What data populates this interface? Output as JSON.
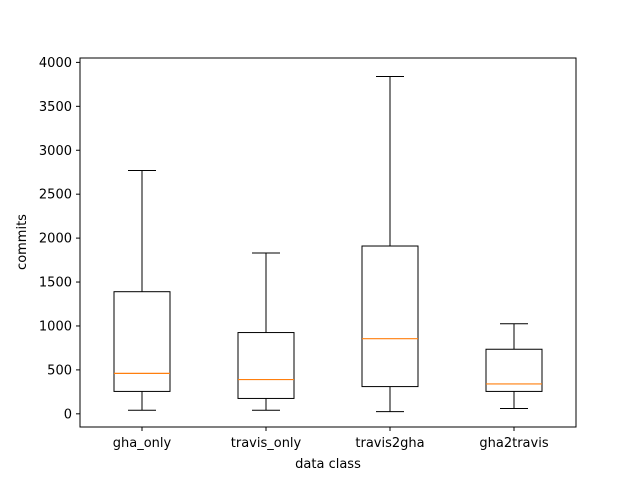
{
  "chart_data": {
    "type": "boxplot",
    "title": "",
    "xlabel": "data class",
    "ylabel": "commits",
    "ylim": [
      -150,
      4050
    ],
    "yticks": [
      0,
      500,
      1000,
      1500,
      2000,
      2500,
      3000,
      3500,
      4000
    ],
    "grid": false,
    "legend": "none",
    "categories": [
      "gha_only",
      "travis_only",
      "travis2gha",
      "gha2travis"
    ],
    "boxes": [
      {
        "category": "gha_only",
        "whisker_low": 40,
        "q1": 255,
        "median": 460,
        "q3": 1390,
        "whisker_high": 2770
      },
      {
        "category": "travis_only",
        "whisker_low": 40,
        "q1": 175,
        "median": 390,
        "q3": 925,
        "whisker_high": 1830
      },
      {
        "category": "travis2gha",
        "whisker_low": 25,
        "q1": 310,
        "median": 855,
        "q3": 1910,
        "whisker_high": 3840
      },
      {
        "category": "gha2travis",
        "whisker_low": 60,
        "q1": 255,
        "median": 340,
        "q3": 735,
        "whisker_high": 1025
      }
    ],
    "colors": {
      "box": "#000000",
      "median": "#ff7f0e",
      "axis": "#000000"
    }
  }
}
